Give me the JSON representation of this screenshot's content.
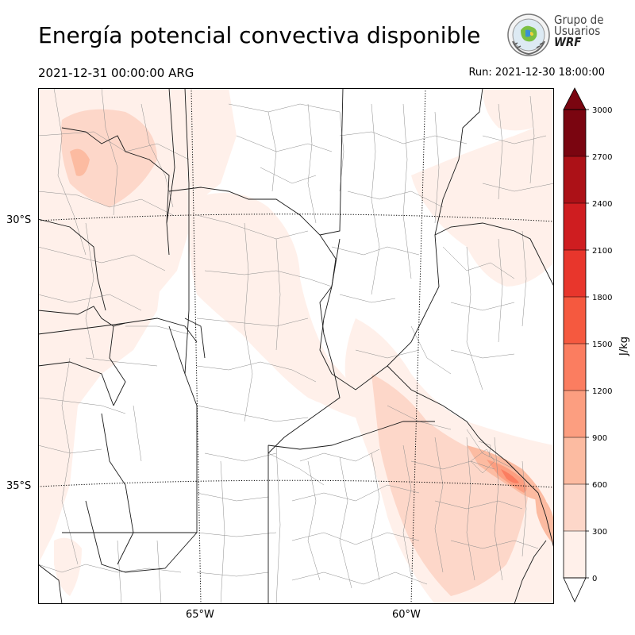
{
  "header": {
    "title": "Energía potencial convectiva disponible",
    "valid_time": "2021-12-31 00:00:00 ARG",
    "run_time": "Run: 2021-12-30 18:00:00"
  },
  "logo": {
    "line1": "Grupo de",
    "line2": "Usuarios",
    "line3": "WRF"
  },
  "map": {
    "lat_labels": [
      "30°S",
      "35°S"
    ],
    "lon_labels": [
      "65°W",
      "60°W"
    ]
  },
  "colorbar": {
    "unit": "J/kg",
    "ticks": [
      "0",
      "300",
      "600",
      "900",
      "1200",
      "1500",
      "1800",
      "2100",
      "2400",
      "2700",
      "3000"
    ],
    "colors": [
      "#fff0ea",
      "#fdd7c9",
      "#fcbba1",
      "#fc9e80",
      "#fb7d60",
      "#f5593f",
      "#e8362c",
      "#cf1d20",
      "#ac1117",
      "#7a0510"
    ]
  }
}
